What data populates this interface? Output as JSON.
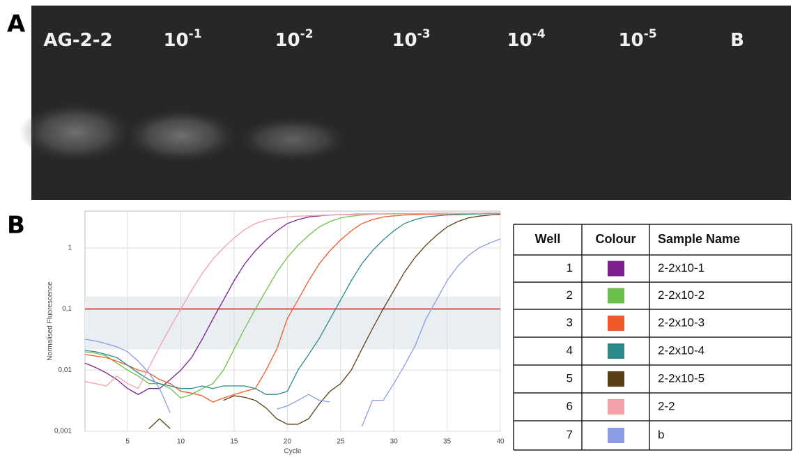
{
  "panel_labels": [
    "A",
    "B"
  ],
  "gel": {
    "lanes": [
      {
        "base": "AG-2-2",
        "sup": ""
      },
      {
        "base": "10",
        "sup": "-1"
      },
      {
        "base": "10",
        "sup": "-2"
      },
      {
        "base": "10",
        "sup": "-3"
      },
      {
        "base": "10",
        "sup": "-4"
      },
      {
        "base": "10",
        "sup": "-5"
      },
      {
        "base": "B",
        "sup": ""
      }
    ]
  },
  "chart_data": {
    "type": "line",
    "x_label": "Cycle",
    "y_label": "Normalised Fluorescence",
    "log_y": true,
    "grid": true,
    "xlim": [
      1,
      40
    ],
    "xticks": [
      5,
      10,
      15,
      20,
      25,
      30,
      35,
      40
    ],
    "ylim": [
      0.001,
      4
    ],
    "yticks": [
      {
        "value": 0.001,
        "label": "0,001"
      },
      {
        "value": 0.01,
        "label": "0,01"
      },
      {
        "value": 0.1,
        "label": "0,1"
      },
      1
    ],
    "threshold": 0.1,
    "threshold_color": "#e05050",
    "band": [
      0.022,
      0.16
    ],
    "band_color": "#e9eef2",
    "x": [
      1,
      2,
      3,
      4,
      5,
      6,
      7,
      8,
      9,
      10,
      11,
      12,
      13,
      14,
      15,
      16,
      17,
      18,
      19,
      20,
      21,
      22,
      23,
      24,
      25,
      26,
      27,
      28,
      29,
      30,
      31,
      32,
      33,
      34,
      35,
      36,
      37,
      38,
      39,
      40
    ],
    "series": [
      {
        "name": "2-2x10-1",
        "color": "#7b1f8e",
        "values": [
          0.013,
          0.011,
          0.009,
          0.007,
          0.005,
          0.004,
          0.005,
          0.005,
          0.007,
          0.01,
          0.016,
          0.032,
          0.068,
          0.14,
          0.29,
          0.55,
          0.9,
          1.35,
          1.9,
          2.5,
          2.9,
          3.2,
          3.35,
          3.45,
          3.5,
          3.55,
          3.57,
          3.6,
          3.6,
          3.62,
          3.63,
          3.64,
          3.65,
          3.66,
          3.67,
          3.68,
          3.68,
          3.69,
          3.7,
          3.7
        ]
      },
      {
        "name": "2-2x10-2",
        "color": "#6cc04a",
        "values": [
          0.02,
          0.019,
          0.017,
          0.013,
          0.01,
          0.008,
          0.006,
          0.006,
          0.005,
          0.0035,
          0.004,
          0.005,
          0.006,
          0.01,
          0.022,
          0.048,
          0.1,
          0.2,
          0.4,
          0.7,
          1.1,
          1.6,
          2.2,
          2.7,
          3.1,
          3.3,
          3.45,
          3.55,
          3.58,
          3.6,
          3.62,
          3.63,
          3.64,
          3.65,
          3.66,
          3.67,
          3.68,
          3.69,
          3.7,
          3.7
        ]
      },
      {
        "name": "2-2x10-3",
        "color": "#f05a28",
        "values": [
          0.018,
          0.017,
          0.016,
          0.014,
          0.012,
          0.01,
          0.009,
          0.007,
          0.006,
          0.0045,
          0.0042,
          0.0038,
          0.003,
          0.0035,
          0.004,
          0.0045,
          0.005,
          0.01,
          0.022,
          0.07,
          0.14,
          0.29,
          0.55,
          0.9,
          1.35,
          1.9,
          2.5,
          2.9,
          3.2,
          3.35,
          3.45,
          3.5,
          3.55,
          3.58,
          3.6,
          3.62,
          3.64,
          3.66,
          3.68,
          3.7
        ]
      },
      {
        "name": "2-2x10-4",
        "color": "#2a8a8a",
        "values": [
          0.021,
          0.02,
          0.018,
          0.016,
          0.012,
          0.009,
          0.007,
          0.006,
          0.0055,
          0.005,
          0.005,
          0.0055,
          0.005,
          0.0055,
          0.0055,
          0.0055,
          0.005,
          0.004,
          0.004,
          0.0045,
          0.01,
          0.018,
          0.033,
          0.068,
          0.14,
          0.29,
          0.55,
          0.9,
          1.35,
          1.9,
          2.5,
          2.9,
          3.2,
          3.35,
          3.45,
          3.5,
          3.55,
          3.6,
          3.65,
          3.68
        ]
      },
      {
        "name": "2-2x10-5",
        "color": "#5a3e15",
        "values": [
          null,
          null,
          null,
          null,
          null,
          null,
          0.0011,
          0.0016,
          0.0011,
          null,
          null,
          null,
          null,
          0.0032,
          0.0038,
          0.0036,
          0.0032,
          0.0024,
          0.0016,
          0.0013,
          0.0013,
          0.0016,
          0.0028,
          0.0045,
          0.006,
          0.01,
          0.022,
          0.048,
          0.1,
          0.2,
          0.4,
          0.7,
          1.1,
          1.6,
          2.2,
          2.7,
          3.1,
          3.3,
          3.45,
          3.55
        ]
      },
      {
        "name": "2-2",
        "color": "#f4a0a8",
        "values": [
          0.0065,
          0.006,
          0.0055,
          0.008,
          0.006,
          0.005,
          0.011,
          0.024,
          0.05,
          0.1,
          0.2,
          0.38,
          0.65,
          1.0,
          1.45,
          2.0,
          2.5,
          2.85,
          3.05,
          3.2,
          3.3,
          3.35,
          3.4,
          3.45,
          3.5,
          3.52,
          3.55,
          3.57,
          3.6,
          3.62,
          3.63,
          3.64,
          3.65,
          3.66,
          3.67,
          3.68,
          3.68,
          3.69,
          3.7,
          3.7
        ]
      },
      {
        "name": "b",
        "color": "#8c9be6",
        "values": [
          0.032,
          0.03,
          0.027,
          0.024,
          0.02,
          0.014,
          0.009,
          0.005,
          0.002,
          null,
          null,
          null,
          null,
          null,
          null,
          null,
          null,
          null,
          0.0023,
          0.0026,
          0.0032,
          0.004,
          0.0032,
          0.003,
          null,
          null,
          0.0012,
          0.0032,
          0.0032,
          0.006,
          0.012,
          0.025,
          0.068,
          0.14,
          0.29,
          0.5,
          0.75,
          1.0,
          1.2,
          1.4
        ]
      }
    ]
  },
  "table": {
    "headers": [
      "Well",
      "Colour",
      "Sample Name"
    ],
    "wells": [
      1,
      2,
      3,
      4,
      5,
      6,
      7
    ]
  }
}
